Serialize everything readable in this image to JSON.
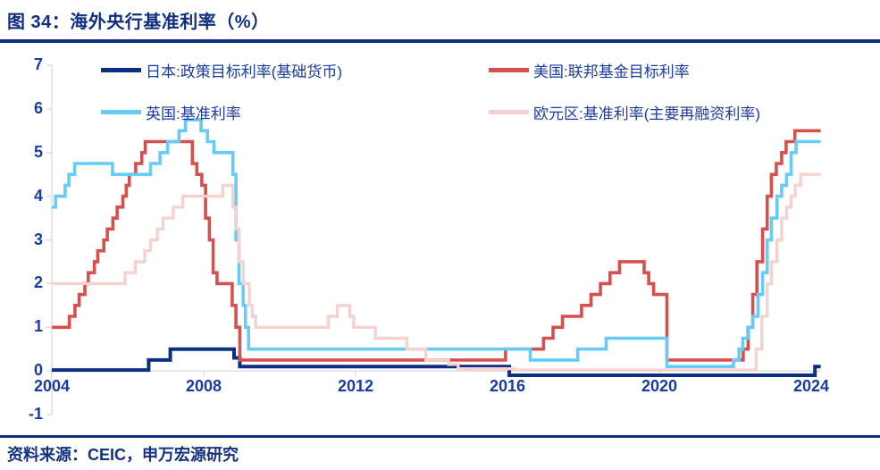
{
  "header": {
    "title": "图 34：海外央行基准利率（%）"
  },
  "footer": {
    "source_label": "资料来源：CEIC，申万宏源研究"
  },
  "colors": {
    "title_text": "#112E7F",
    "body_text": "#1C3B9E",
    "rule": "#0F2F7D",
    "axis_line": "#D9D9D9",
    "background": "#FFFFFF"
  },
  "chart_data": {
    "type": "line",
    "subtype": "step",
    "title": "海外央行基准利率（%）",
    "xlabel": "",
    "ylabel": "",
    "grid": false,
    "legend_position": "top",
    "x_axis": {
      "min": 2004,
      "max": 2024.3,
      "ticks": [
        2004,
        2008,
        2012,
        2016,
        2020,
        2024
      ],
      "data_end": 2024.25
    },
    "y_axis": {
      "min": -1,
      "max": 7,
      "ticks": [
        7,
        6,
        5,
        4,
        3,
        2,
        1,
        0,
        -1
      ]
    },
    "breakpoints_format": "[decimal_year, rate_percent] — value holds until next point, drawn as steps",
    "series": [
      {
        "key": "japan",
        "name": "日本:政策目标利率(基础货币)",
        "color": "#0C2F80",
        "width": 4,
        "breakpoints": [
          [
            2004.0,
            0.02
          ],
          [
            2006.55,
            0.25
          ],
          [
            2007.12,
            0.5
          ],
          [
            2008.8,
            0.3
          ],
          [
            2008.95,
            0.1
          ],
          [
            2016.05,
            -0.1
          ],
          [
            2024.1,
            0.1
          ]
        ]
      },
      {
        "key": "us",
        "name": "美国:联邦基金目标利率",
        "color": "#D5504E",
        "width": 3.6,
        "breakpoints": [
          [
            2004.0,
            1.0
          ],
          [
            2004.46,
            1.25
          ],
          [
            2004.61,
            1.5
          ],
          [
            2004.72,
            1.75
          ],
          [
            2004.87,
            2.0
          ],
          [
            2004.96,
            2.25
          ],
          [
            2005.12,
            2.5
          ],
          [
            2005.21,
            2.75
          ],
          [
            2005.37,
            3.0
          ],
          [
            2005.46,
            3.25
          ],
          [
            2005.61,
            3.5
          ],
          [
            2005.72,
            3.75
          ],
          [
            2005.87,
            4.0
          ],
          [
            2005.96,
            4.25
          ],
          [
            2006.04,
            4.5
          ],
          [
            2006.21,
            4.75
          ],
          [
            2006.37,
            5.0
          ],
          [
            2006.46,
            5.25
          ],
          [
            2007.7,
            4.75
          ],
          [
            2007.82,
            4.5
          ],
          [
            2007.95,
            4.25
          ],
          [
            2008.05,
            3.5
          ],
          [
            2008.15,
            3.0
          ],
          [
            2008.25,
            2.25
          ],
          [
            2008.35,
            2.0
          ],
          [
            2008.75,
            1.5
          ],
          [
            2008.85,
            1.0
          ],
          [
            2008.95,
            0.25
          ],
          [
            2015.95,
            0.5
          ],
          [
            2016.95,
            0.75
          ],
          [
            2017.2,
            1.0
          ],
          [
            2017.45,
            1.25
          ],
          [
            2017.95,
            1.5
          ],
          [
            2018.2,
            1.75
          ],
          [
            2018.45,
            2.0
          ],
          [
            2018.7,
            2.25
          ],
          [
            2018.95,
            2.5
          ],
          [
            2019.6,
            2.25
          ],
          [
            2019.72,
            2.0
          ],
          [
            2019.85,
            1.75
          ],
          [
            2020.2,
            0.25
          ],
          [
            2022.21,
            0.5
          ],
          [
            2022.34,
            1.0
          ],
          [
            2022.46,
            1.75
          ],
          [
            2022.57,
            2.5
          ],
          [
            2022.72,
            3.25
          ],
          [
            2022.84,
            4.0
          ],
          [
            2022.95,
            4.5
          ],
          [
            2023.08,
            4.75
          ],
          [
            2023.22,
            5.0
          ],
          [
            2023.34,
            5.25
          ],
          [
            2023.57,
            5.5
          ]
        ]
      },
      {
        "key": "uk",
        "name": "英国:基准利率",
        "color": "#66CCF5",
        "width": 3.6,
        "breakpoints": [
          [
            2004.0,
            3.75
          ],
          [
            2004.1,
            4.0
          ],
          [
            2004.35,
            4.25
          ],
          [
            2004.45,
            4.5
          ],
          [
            2004.6,
            4.75
          ],
          [
            2005.6,
            4.5
          ],
          [
            2006.6,
            4.75
          ],
          [
            2006.85,
            5.0
          ],
          [
            2007.05,
            5.25
          ],
          [
            2007.35,
            5.5
          ],
          [
            2007.52,
            5.75
          ],
          [
            2007.93,
            5.5
          ],
          [
            2008.1,
            5.25
          ],
          [
            2008.27,
            5.0
          ],
          [
            2008.77,
            4.5
          ],
          [
            2008.85,
            3.0
          ],
          [
            2008.93,
            2.0
          ],
          [
            2009.04,
            1.5
          ],
          [
            2009.1,
            1.0
          ],
          [
            2009.18,
            0.5
          ],
          [
            2016.6,
            0.25
          ],
          [
            2017.85,
            0.5
          ],
          [
            2018.6,
            0.75
          ],
          [
            2020.2,
            0.1
          ],
          [
            2021.95,
            0.25
          ],
          [
            2022.1,
            0.5
          ],
          [
            2022.2,
            0.75
          ],
          [
            2022.35,
            1.0
          ],
          [
            2022.46,
            1.25
          ],
          [
            2022.6,
            1.75
          ],
          [
            2022.72,
            2.25
          ],
          [
            2022.84,
            3.0
          ],
          [
            2022.95,
            3.5
          ],
          [
            2023.1,
            4.0
          ],
          [
            2023.22,
            4.25
          ],
          [
            2023.35,
            4.5
          ],
          [
            2023.47,
            5.0
          ],
          [
            2023.6,
            5.25
          ]
        ]
      },
      {
        "key": "eurozone",
        "name": "欧元区:基准利率(主要再融资利率)",
        "color": "#F5D1D0",
        "width": 3.4,
        "breakpoints": [
          [
            2004.0,
            2.0
          ],
          [
            2005.93,
            2.25
          ],
          [
            2006.2,
            2.5
          ],
          [
            2006.45,
            2.75
          ],
          [
            2006.6,
            3.0
          ],
          [
            2006.78,
            3.25
          ],
          [
            2006.93,
            3.5
          ],
          [
            2007.2,
            3.75
          ],
          [
            2007.45,
            4.0
          ],
          [
            2008.5,
            4.25
          ],
          [
            2008.77,
            3.75
          ],
          [
            2008.85,
            3.25
          ],
          [
            2008.93,
            2.5
          ],
          [
            2009.04,
            2.0
          ],
          [
            2009.2,
            1.5
          ],
          [
            2009.28,
            1.25
          ],
          [
            2009.37,
            1.0
          ],
          [
            2011.28,
            1.25
          ],
          [
            2011.52,
            1.5
          ],
          [
            2011.85,
            1.25
          ],
          [
            2011.95,
            1.0
          ],
          [
            2012.52,
            0.75
          ],
          [
            2013.35,
            0.5
          ],
          [
            2013.85,
            0.25
          ],
          [
            2014.45,
            0.15
          ],
          [
            2014.7,
            0.05
          ],
          [
            2016.2,
            0.02
          ],
          [
            2022.55,
            0.5
          ],
          [
            2022.7,
            1.25
          ],
          [
            2022.84,
            2.0
          ],
          [
            2022.95,
            2.5
          ],
          [
            2023.1,
            3.0
          ],
          [
            2023.22,
            3.5
          ],
          [
            2023.35,
            3.75
          ],
          [
            2023.47,
            4.0
          ],
          [
            2023.58,
            4.25
          ],
          [
            2023.72,
            4.5
          ]
        ]
      }
    ]
  }
}
